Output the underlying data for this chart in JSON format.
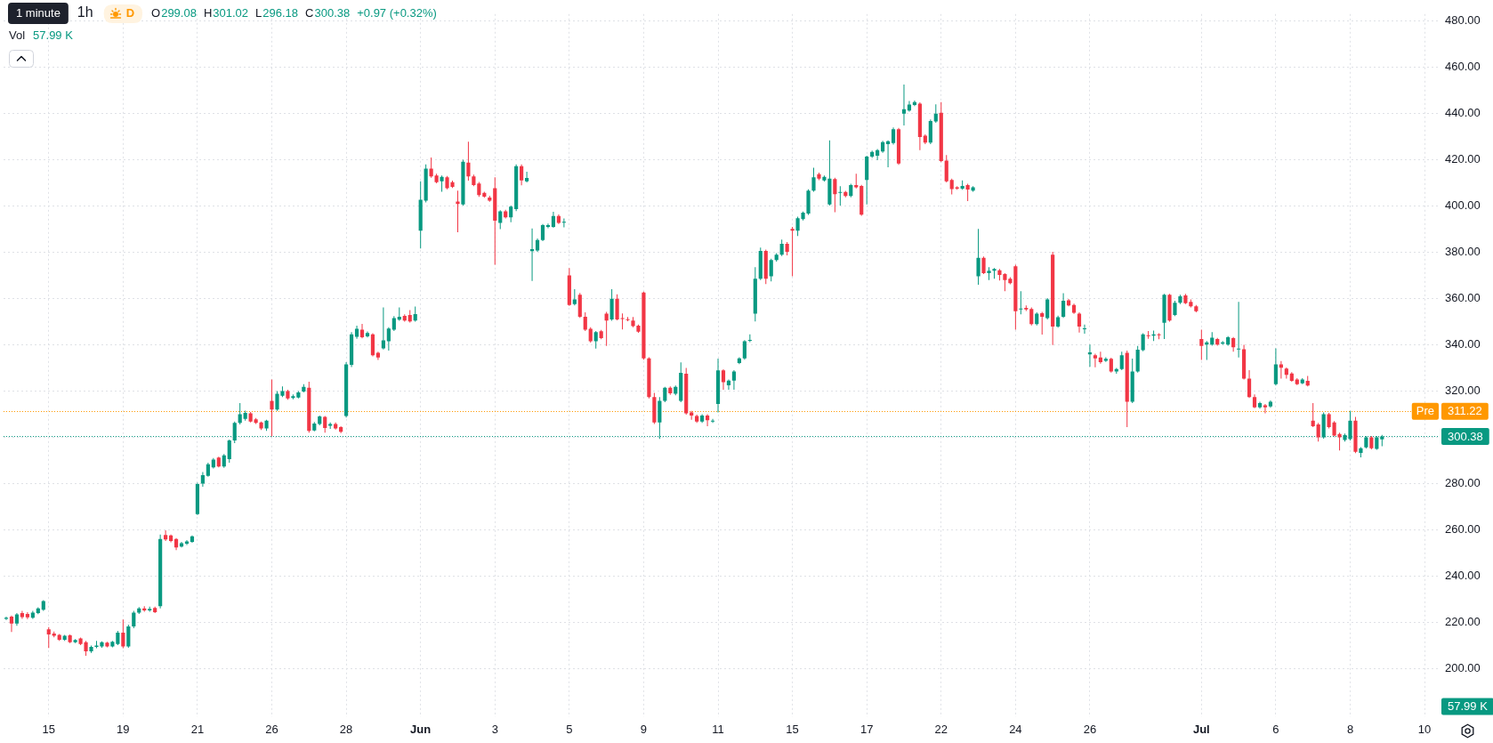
{
  "chart_data": {
    "type": "candlestick",
    "title": "1h",
    "subtitle": "D",
    "annotations": [
      "1 minute",
      "O299.08",
      "H301.02",
      "L296.18",
      "C300.38",
      "+0.97 (+0.32%)",
      "Vol",
      "57.99 K",
      "57.99 K"
    ],
    "categories": [
      null,
      null,
      null,
      null,
      null,
      null,
      null,
      null,
      "15",
      null,
      null,
      null,
      null,
      null,
      null,
      null,
      null,
      null,
      null,
      null,
      null,
      null,
      "19",
      null,
      null,
      null,
      null,
      null,
      null,
      null,
      null,
      null,
      null,
      null,
      null,
      null,
      "21",
      null,
      null,
      null,
      null,
      null,
      null,
      null,
      null,
      null,
      null,
      null,
      null,
      null,
      "26",
      null,
      null,
      null,
      null,
      null,
      null,
      null,
      null,
      null,
      null,
      null,
      null,
      null,
      "28",
      null,
      null,
      null,
      null,
      null,
      null,
      null,
      null,
      null,
      null,
      null,
      null,
      null,
      "Jun",
      null,
      null,
      null,
      null,
      null,
      null,
      null,
      null,
      null,
      null,
      null,
      null,
      null,
      "3",
      null,
      null,
      null,
      null,
      null,
      null,
      null,
      null,
      null,
      null,
      null,
      null,
      null,
      "5",
      null,
      null,
      null,
      null,
      null,
      null,
      null,
      null,
      null,
      null,
      null,
      null,
      null,
      "9",
      null,
      null,
      null,
      null,
      null,
      null,
      null,
      null,
      null,
      null,
      null,
      null,
      null,
      "11",
      null,
      null,
      null,
      null,
      null,
      null,
      null,
      null,
      null,
      null,
      null,
      null,
      null,
      "15",
      null,
      null,
      null,
      null,
      null,
      null,
      null,
      null,
      null,
      null,
      null,
      null,
      null,
      "17",
      null,
      null,
      null,
      null,
      null,
      null,
      null,
      null,
      null,
      null,
      null,
      null,
      null,
      "22",
      null,
      null,
      null,
      null,
      null,
      null,
      null,
      null,
      null,
      null,
      null,
      null,
      null,
      "24",
      null,
      null,
      null,
      null,
      null,
      null,
      null,
      null,
      null,
      null,
      null,
      null,
      null,
      "26",
      null,
      null,
      null,
      null,
      null,
      null,
      null,
      null,
      null,
      null,
      null,
      null,
      null,
      null,
      null,
      null,
      null,
      null,
      null,
      null,
      "Jul",
      null,
      null,
      null,
      null,
      null,
      null,
      null,
      null,
      null,
      null,
      null,
      null,
      null,
      "6",
      null,
      null,
      null,
      null,
      null,
      null,
      null,
      null,
      null,
      null,
      null,
      null,
      null,
      "8",
      null,
      null,
      null,
      null,
      null,
      null,
      null,
      null,
      null,
      null,
      null,
      null,
      null,
      "10",
      null,
      null
    ],
    "ohlc": [
      [
        221.5,
        222.5,
        221,
        222
      ],
      [
        222.5,
        223,
        215.8,
        219.5
      ],
      [
        219.5,
        224,
        218.5,
        223.4
      ],
      [
        224,
        225,
        221.5,
        222.3
      ],
      [
        223.6,
        224.4,
        221.4,
        222.2
      ],
      [
        222,
        225,
        221.5,
        224.2
      ],
      [
        224,
        226.5,
        223.5,
        226
      ],
      [
        225.5,
        229.6,
        225,
        229.2
      ],
      [
        217,
        218,
        208.9,
        214.8
      ],
      [
        215.2,
        216,
        213.5,
        214.2
      ],
      [
        214.6,
        215,
        212,
        212.5
      ],
      [
        212.5,
        214.6,
        212,
        214.2
      ],
      [
        214.4,
        214.8,
        211,
        211.4
      ],
      [
        211.4,
        212.8,
        211,
        212.4
      ],
      [
        213,
        213.4,
        210.2,
        210.6
      ],
      [
        211.4,
        212,
        205.5,
        207.5
      ],
      [
        207.5,
        210,
        206.8,
        209.4
      ],
      [
        209.4,
        212,
        208.8,
        210
      ],
      [
        209.6,
        211.8,
        209,
        211.4
      ],
      [
        211.2,
        211.6,
        209.2,
        209.6
      ],
      [
        209.6,
        212,
        209.2,
        211.6
      ],
      [
        210.6,
        216.3,
        210.2,
        215.5
      ],
      [
        215.5,
        221.2,
        208.8,
        209.6
      ],
      [
        209.6,
        219,
        209,
        218.2
      ],
      [
        218.2,
        225,
        217.5,
        224.2
      ],
      [
        224.2,
        226.6,
        223.6,
        226
      ],
      [
        226,
        227,
        224.6,
        225.2
      ],
      [
        225.2,
        226.8,
        224.6,
        225.8
      ],
      [
        226.2,
        226.8,
        224,
        224.4
      ],
      [
        227,
        258,
        226,
        256
      ],
      [
        257.8,
        259.8,
        255.2,
        255.8
      ],
      [
        257.6,
        258,
        254.6,
        255.2
      ],
      [
        256,
        256.4,
        251.2,
        252.4
      ],
      [
        252.8,
        254.8,
        252.4,
        254.2
      ],
      [
        254,
        255.6,
        253.4,
        255
      ],
      [
        254.8,
        257.6,
        254.4,
        257.2
      ],
      [
        266.8,
        280.4,
        266.4,
        279.8
      ],
      [
        280,
        285,
        278.6,
        283.6
      ],
      [
        283.4,
        289,
        283,
        288.4
      ],
      [
        287,
        291,
        286.5,
        290.4
      ],
      [
        291.2,
        291.6,
        287,
        287.4
      ],
      [
        287.4,
        292.8,
        286.8,
        292.2
      ],
      [
        290.6,
        299,
        289,
        298.6
      ],
      [
        298.6,
        306.8,
        297.5,
        306.2
      ],
      [
        306.2,
        314.8,
        305.6,
        310
      ],
      [
        308,
        311.5,
        307.2,
        310.6
      ],
      [
        310.4,
        311,
        306.4,
        306.8
      ],
      [
        307.8,
        308.4,
        305.8,
        306.2
      ],
      [
        306.4,
        306.8,
        303.2,
        303.8
      ],
      [
        303.8,
        307.6,
        302.8,
        307.2
      ],
      [
        315.8,
        325,
        300.4,
        312
      ],
      [
        312,
        320,
        311.4,
        318.8
      ],
      [
        318,
        322,
        317.4,
        320
      ],
      [
        320,
        320.6,
        316.2,
        316.8
      ],
      [
        317,
        318.6,
        316.4,
        317.8
      ],
      [
        317.2,
        320,
        316.8,
        319.4
      ],
      [
        319.8,
        323,
        319.4,
        321.8
      ],
      [
        321.4,
        324,
        302,
        302.8
      ],
      [
        303,
        306.6,
        302.6,
        306
      ],
      [
        305.8,
        309.4,
        305.2,
        309
      ],
      [
        308.8,
        309.2,
        302,
        304
      ],
      [
        305,
        306.4,
        303.6,
        305.8
      ],
      [
        305.8,
        306.4,
        303.4,
        303.8
      ],
      [
        304.4,
        304.8,
        301.8,
        302.4
      ],
      [
        309.2,
        332.5,
        308.6,
        331.5
      ],
      [
        331.3,
        345.5,
        330.4,
        344.5
      ],
      [
        343.5,
        348.3,
        342.6,
        346.9
      ],
      [
        346.5,
        349,
        342.8,
        343.3
      ],
      [
        343.7,
        345.8,
        343.2,
        345.1
      ],
      [
        344.5,
        345,
        335,
        335.5
      ],
      [
        336.5,
        337,
        333.5,
        334.5
      ],
      [
        338.5,
        356.2,
        338,
        341.9
      ],
      [
        341.5,
        347.6,
        337.5,
        347
      ],
      [
        346.5,
        352.4,
        346,
        351.5
      ],
      [
        350.9,
        356.2,
        350.4,
        352.1
      ],
      [
        352.5,
        353.2,
        350,
        350.5
      ],
      [
        352.9,
        355,
        349.6,
        350.1
      ],
      [
        350.5,
        356.5,
        350,
        353.3
      ],
      [
        389.3,
        410.7,
        381.6,
        402.7
      ],
      [
        402.3,
        418,
        401.6,
        416.2
      ],
      [
        416.2,
        421,
        412.2,
        412.8
      ],
      [
        413.2,
        414,
        409.8,
        410.3
      ],
      [
        410.7,
        413.2,
        406.2,
        412.6
      ],
      [
        412.4,
        413,
        407.2,
        407.7
      ],
      [
        410.3,
        411,
        407.8,
        408.3
      ],
      [
        401.9,
        406.7,
        388.7,
        400.9
      ],
      [
        400.7,
        420,
        400.2,
        419.2
      ],
      [
        418.8,
        427.8,
        411,
        412.8
      ],
      [
        412.8,
        413.6,
        408.6,
        409.1
      ],
      [
        409.7,
        410.4,
        404,
        404.7
      ],
      [
        405.7,
        406.2,
        403.6,
        404.1
      ],
      [
        403.7,
        404.4,
        401.8,
        402.3
      ],
      [
        407.7,
        412.4,
        374.6,
        393.7
      ],
      [
        392.7,
        398.2,
        390,
        397.7
      ],
      [
        397.7,
        398.4,
        394.6,
        395.1
      ],
      [
        395.1,
        400.2,
        393,
        399.7
      ],
      [
        398.7,
        418,
        397.8,
        417.2
      ],
      [
        417.2,
        418,
        409,
        411.1
      ],
      [
        410.7,
        414.8,
        410.2,
        412.1
      ],
      [
        380.5,
        390.3,
        367.6,
        381.4
      ],
      [
        380.8,
        386,
        380.2,
        385.3
      ],
      [
        385.3,
        392.2,
        384.8,
        391.7
      ],
      [
        391,
        392.4,
        390.4,
        391.7
      ],
      [
        391,
        397.5,
        390.6,
        395.7
      ],
      [
        395.7,
        396.4,
        392.2,
        392.7
      ],
      [
        392.8,
        394.6,
        390.8,
        393.2
      ],
      [
        370,
        373.2,
        356.8,
        357.2
      ],
      [
        357.6,
        364,
        357,
        359.6
      ],
      [
        361.6,
        362.4,
        351.6,
        352.1
      ],
      [
        352.1,
        354,
        346,
        346.5
      ],
      [
        346.9,
        347.6,
        341,
        341.5
      ],
      [
        341.5,
        346,
        338.4,
        345.5
      ],
      [
        345.9,
        346.4,
        342.4,
        342.9
      ],
      [
        353.5,
        354.2,
        339.5,
        350.5
      ],
      [
        351,
        364,
        350.4,
        359.9
      ],
      [
        359.9,
        361.8,
        350.6,
        351
      ],
      [
        351.5,
        353.6,
        346.6,
        351.3
      ],
      [
        351.1,
        352,
        350.2,
        350.7
      ],
      [
        350.5,
        352,
        347.6,
        348.1
      ],
      [
        348.3,
        348.8,
        345.2,
        345.7
      ],
      [
        362.6,
        363,
        333.6,
        334.1
      ],
      [
        334.1,
        334.6,
        316.8,
        317.4
      ],
      [
        317.4,
        319.2,
        305.8,
        306.4
      ],
      [
        306.4,
        317.4,
        299.3,
        315.8
      ],
      [
        315.8,
        321.8,
        315.2,
        321.4
      ],
      [
        321.4,
        322,
        318.4,
        319
      ],
      [
        318.8,
        322.4,
        318.2,
        321.8
      ],
      [
        315.8,
        332.4,
        315.2,
        327.9
      ],
      [
        327.5,
        330,
        309.8,
        310.4
      ],
      [
        310.8,
        311.4,
        307.6,
        309.4
      ],
      [
        309.2,
        309.8,
        306.2,
        306.8
      ],
      [
        306.8,
        310,
        306.2,
        309.4
      ],
      [
        309.4,
        310,
        304.8,
        307.4
      ],
      [
        306.8,
        308,
        306.2,
        307.2
      ],
      [
        314.4,
        334,
        310.8,
        328.9
      ],
      [
        328.9,
        329.4,
        320.6,
        323.8
      ],
      [
        322.5,
        325,
        320.6,
        324.5
      ],
      [
        324.5,
        329,
        320.6,
        328.5
      ],
      [
        332.1,
        334.6,
        331.6,
        334.1
      ],
      [
        334.1,
        342,
        333.6,
        341.5
      ],
      [
        341.7,
        344.5,
        341.2,
        342.1
      ],
      [
        353.5,
        373.6,
        350.1,
        368.6
      ],
      [
        368.6,
        382,
        368,
        380.6
      ],
      [
        380.6,
        381.2,
        366.3,
        368.6
      ],
      [
        369.6,
        377.2,
        367.4,
        376.6
      ],
      [
        376.6,
        379.6,
        376,
        379
      ],
      [
        379,
        385.5,
        378.4,
        383.7
      ],
      [
        383.7,
        384.4,
        378.7,
        380.2
      ],
      [
        390.1,
        391,
        369.6,
        389.3
      ],
      [
        389.3,
        395.4,
        387,
        394.7
      ],
      [
        394.3,
        397.6,
        393.8,
        397.1
      ],
      [
        396.7,
        407.2,
        396.2,
        406.7
      ],
      [
        406.7,
        416.6,
        406.2,
        412.4
      ],
      [
        413.8,
        414.4,
        411.2,
        411.8
      ],
      [
        411.1,
        413.2,
        410.6,
        412.6
      ],
      [
        400.7,
        428.4,
        400.2,
        411.8
      ],
      [
        411.7,
        412.2,
        397.3,
        405.1
      ],
      [
        405.7,
        408.6,
        400.2,
        406.1
      ],
      [
        406.1,
        406.6,
        403.8,
        404.3
      ],
      [
        404.3,
        409.6,
        403.8,
        409.1
      ],
      [
        409.1,
        414,
        407.6,
        408.1
      ],
      [
        408.7,
        409.2,
        395.8,
        396.3
      ],
      [
        411.3,
        421.8,
        400.7,
        421.4
      ],
      [
        421.4,
        424,
        420.8,
        423.4
      ],
      [
        421.8,
        424.6,
        419.8,
        424.2
      ],
      [
        423.6,
        428.2,
        423,
        427.6
      ],
      [
        426.8,
        428.4,
        416.8,
        428
      ],
      [
        427.2,
        434,
        426.6,
        433.2
      ],
      [
        433.2,
        433.8,
        417.8,
        418.4
      ],
      [
        439.9,
        452.5,
        434.8,
        441.9
      ],
      [
        441.3,
        445.4,
        440.8,
        443.9
      ],
      [
        443.7,
        445.6,
        443.2,
        444.9
      ],
      [
        444.3,
        444.8,
        424.2,
        429.8
      ],
      [
        430.4,
        431,
        426.8,
        427.4
      ],
      [
        427.4,
        437.4,
        426.8,
        436.8
      ],
      [
        436.6,
        444,
        436,
        439.9
      ],
      [
        440.3,
        444.9,
        419,
        419.4
      ],
      [
        419.6,
        422,
        410.2,
        410.7
      ],
      [
        411.3,
        411.8,
        405,
        407.3
      ],
      [
        408.1,
        408.6,
        407,
        407.5
      ],
      [
        407.5,
        411.1,
        407,
        408.7
      ],
      [
        409.1,
        409.6,
        402.1,
        407.1
      ],
      [
        406.7,
        408.6,
        406.2,
        408.1
      ],
      [
        369.6,
        390.1,
        366,
        377.6
      ],
      [
        377.6,
        378.2,
        370.6,
        371
      ],
      [
        371,
        373.6,
        368,
        372
      ],
      [
        372,
        373.2,
        368.6,
        372.8
      ],
      [
        372.2,
        372.8,
        367.8,
        370.2
      ],
      [
        370.6,
        371,
        363.2,
        368
      ],
      [
        368.6,
        369.2,
        366.2,
        366.6
      ],
      [
        374,
        374.6,
        346.5,
        354.5
      ],
      [
        355.3,
        363.2,
        353.2,
        355.7
      ],
      [
        356,
        357,
        354.6,
        355.3
      ],
      [
        355.5,
        356.2,
        348.4,
        348.9
      ],
      [
        348.9,
        354,
        348.4,
        353.5
      ],
      [
        353.7,
        354.2,
        344.4,
        352.1
      ],
      [
        351.5,
        360.2,
        351,
        359.6
      ],
      [
        379,
        380.2,
        339.9,
        347.9
      ],
      [
        347.9,
        352.6,
        347.4,
        351.9
      ],
      [
        352.1,
        362.3,
        351.6,
        359
      ],
      [
        359.2,
        359.8,
        356.6,
        357
      ],
      [
        357.2,
        357.8,
        353.4,
        353.9
      ],
      [
        353.5,
        354,
        345.3,
        347.9
      ],
      [
        346.7,
        348.8,
        344.8,
        347.1
      ],
      [
        335.9,
        340.1,
        330.5,
        336.7
      ],
      [
        335.5,
        336.2,
        330.3,
        334.1
      ],
      [
        334.5,
        337,
        331.8,
        332.5
      ],
      [
        333.1,
        334.6,
        332.6,
        333.9
      ],
      [
        333.9,
        334.4,
        328,
        328.5
      ],
      [
        328.5,
        330,
        327.5,
        329.5
      ],
      [
        329.5,
        337,
        329,
        335.5
      ],
      [
        336.5,
        337.5,
        304.4,
        315.4
      ],
      [
        315.4,
        334,
        314.8,
        328.5
      ],
      [
        328.5,
        339.5,
        328,
        337.9
      ],
      [
        337.7,
        345,
        337.2,
        344.5
      ],
      [
        344.1,
        346,
        342.6,
        343.9
      ],
      [
        343.9,
        346.2,
        341.6,
        344.5
      ],
      [
        344.5,
        345,
        342.4,
        344.3
      ],
      [
        349.5,
        362,
        342.5,
        361.6
      ],
      [
        361.6,
        362,
        350,
        350.5
      ],
      [
        352.9,
        359,
        352.4,
        358.2
      ],
      [
        358.2,
        361.6,
        357.6,
        361
      ],
      [
        361.4,
        362,
        357.6,
        358
      ],
      [
        358.6,
        359.6,
        356.2,
        356.6
      ],
      [
        356.6,
        357.2,
        354,
        354.5
      ],
      [
        342.5,
        346.5,
        333.5,
        339.5
      ],
      [
        340.1,
        341.6,
        333.5,
        341.1
      ],
      [
        340.1,
        345.5,
        339.6,
        343.1
      ],
      [
        342.5,
        343,
        339.6,
        340.1
      ],
      [
        340.5,
        341.6,
        340,
        341.1
      ],
      [
        340.1,
        343.8,
        339.6,
        343.3
      ],
      [
        342.9,
        343.4,
        337,
        338.9
      ],
      [
        338,
        358.6,
        334.5,
        338.4
      ],
      [
        338.1,
        340,
        325,
        325.4
      ],
      [
        325.4,
        329,
        317,
        317.4
      ],
      [
        317.4,
        318.6,
        312.6,
        313
      ],
      [
        313,
        315.4,
        312.4,
        314.8
      ],
      [
        313.8,
        314.4,
        310.4,
        313
      ],
      [
        313.4,
        316,
        312.8,
        315.4
      ],
      [
        323,
        338.5,
        322.4,
        331.5
      ],
      [
        331.5,
        333,
        325.4,
        330.1
      ],
      [
        329.7,
        330.2,
        325.4,
        327
      ],
      [
        327.6,
        328.2,
        324,
        324.4
      ],
      [
        325,
        325.6,
        322.6,
        323
      ],
      [
        323.4,
        325.6,
        323,
        325
      ],
      [
        324.4,
        326.5,
        322,
        322.4
      ],
      [
        307.2,
        314.8,
        304.4,
        304.8
      ],
      [
        305.6,
        306.2,
        298.2,
        300
      ],
      [
        300,
        310.8,
        299.4,
        310
      ],
      [
        310,
        310.6,
        303.8,
        304.4
      ],
      [
        306.4,
        307,
        300.4,
        300.8
      ],
      [
        301.4,
        302,
        294.3,
        300
      ],
      [
        298.8,
        301.6,
        298.2,
        301
      ],
      [
        299.2,
        311.4,
        298.6,
        307.2
      ],
      [
        307.2,
        308.8,
        293.2,
        293.7
      ],
      [
        293.3,
        295.8,
        291.3,
        295.3
      ],
      [
        295.7,
        300.6,
        295.2,
        300
      ],
      [
        300,
        300.6,
        294.8,
        295.3
      ],
      [
        295,
        300.6,
        294.6,
        300
      ],
      [
        299.08,
        301.02,
        296.18,
        300.38
      ],
      null,
      null,
      null,
      null,
      null,
      null,
      null,
      null,
      null,
      null
    ],
    "colors": [
      "#089981",
      "#f23645",
      "#089981",
      "#f23645",
      "#f23645",
      "#089981",
      "#089981",
      "#089981",
      "#f23645",
      "#f23645",
      "#f23645",
      "#089981",
      "#f23645",
      "#089981",
      "#f23645",
      "#f23645",
      "#089981",
      "#089981",
      "#089981",
      "#f23645",
      "#089981",
      "#089981",
      "#f23645",
      "#089981",
      "#089981",
      "#089981",
      "#f23645",
      "#089981",
      "#f23645",
      "#089981",
      "#f23645",
      "#f23645",
      "#f23645",
      "#089981",
      "#089981",
      "#089981",
      "#089981",
      "#089981",
      "#089981",
      "#089981",
      "#f23645",
      "#089981",
      "#089981",
      "#089981",
      "#089981",
      "#089981",
      "#f23645",
      "#f23645",
      "#f23645",
      "#089981",
      "#f23645",
      "#089981",
      "#089981",
      "#f23645",
      "#089981",
      "#089981",
      "#089981",
      "#f23645",
      "#089981",
      "#089981",
      "#f23645",
      "#089981",
      "#f23645",
      "#f23645",
      "#089981",
      "#089981",
      "#089981",
      "#f23645",
      "#089981",
      "#f23645",
      "#f23645",
      "#089981",
      "#089981",
      "#089981",
      "#089981",
      "#f23645",
      "#f23645",
      "#089981",
      "#089981",
      "#089981",
      "#f23645",
      "#f23645",
      "#089981",
      "#f23645",
      "#f23645",
      "#f23645",
      "#089981",
      "#f23645",
      "#f23645",
      "#f23645",
      "#f23645",
      "#f23645",
      "#f23645",
      "#089981",
      "#f23645",
      "#089981",
      "#089981",
      "#f23645",
      "#089981",
      "#089981",
      "#089981",
      "#089981",
      "#089981",
      "#089981",
      "#f23645",
      "#089981",
      "#f23645",
      "#089981",
      "#f23645",
      "#f23645",
      "#f23645",
      "#089981",
      "#f23645",
      "#f23645",
      "#089981",
      "#f23645",
      "#f23645",
      "#f23645",
      "#f23645",
      "#f23645",
      "#f23645",
      "#f23645",
      "#f23645",
      "#089981",
      "#089981",
      "#f23645",
      "#089981",
      "#089981",
      "#f23645",
      "#f23645",
      "#f23645",
      "#089981",
      "#f23645",
      "#089981",
      "#089981",
      "#f23645",
      "#089981",
      "#089981",
      "#089981",
      "#089981",
      "#089981",
      "#089981",
      "#089981",
      "#f23645",
      "#089981",
      "#089981",
      "#089981",
      "#f23645",
      "#f23645",
      "#089981",
      "#089981",
      "#089981",
      "#089981",
      "#f23645",
      "#089981",
      "#089981",
      "#f23645",
      "#089981",
      "#f23645",
      "#089981",
      "#f23645",
      "#f23645",
      "#089981",
      "#089981",
      "#089981",
      "#089981",
      "#089981",
      "#089981",
      "#f23645",
      "#089981",
      "#089981",
      "#089981",
      "#f23645",
      "#f23645",
      "#089981",
      "#089981",
      "#f23645",
      "#f23645",
      "#f23645",
      "#f23645",
      "#089981",
      "#f23645",
      "#089981",
      "#089981",
      "#f23645",
      "#089981",
      "#089981",
      "#f23645",
      "#f23645",
      "#f23645",
      "#f23645",
      "#089981",
      "#f23645",
      "#f23645",
      "#089981",
      "#f23645",
      "#089981",
      "#f23645",
      "#089981",
      "#089981",
      "#f23645",
      "#f23645",
      "#f23645",
      "#089981",
      "#089981",
      "#f23645",
      "#f23645",
      "#089981",
      "#f23645",
      "#089981",
      "#089981",
      "#f23645",
      "#089981",
      "#089981",
      "#089981",
      "#f23645",
      "#089981",
      "#f23645",
      "#089981",
      "#f23645",
      "#089981",
      "#089981",
      "#f23645",
      "#f23645",
      "#f23645",
      "#f23645",
      "#089981",
      "#089981",
      "#f23645",
      "#089981",
      "#089981",
      "#f23645",
      "#089981",
      "#f23645",
      "#f23645",
      "#f23645",
      "#089981",
      "#f23645",
      "#089981",
      "#089981",
      "#f23645",
      "#f23645",
      "#f23645",
      "#f23645",
      "#089981",
      "#f23645",
      "#f23645",
      "#f23645",
      "#089981",
      "#f23645",
      "#f23645",
      "#f23645",
      "#089981",
      "#089981",
      "#f23645",
      "#089981",
      "#089981",
      "#f23645",
      "#089981",
      "#089981",
      null,
      null,
      null,
      null,
      null,
      null,
      null,
      null,
      null,
      null
    ],
    "ylim": [
      179,
      483
    ],
    "yticks": [
      {
        "value": 200,
        "label": "200.00"
      },
      {
        "value": 220,
        "label": "220.00"
      },
      {
        "value": 240,
        "label": "240.00"
      },
      {
        "value": 260,
        "label": "260.00"
      },
      {
        "value": 280,
        "label": "280.00"
      },
      {
        "value": 300,
        "label": null
      },
      {
        "value": 320,
        "label": "320.00"
      },
      {
        "value": 340,
        "label": "340.00"
      },
      {
        "value": 360,
        "label": "360.00"
      },
      {
        "value": 380,
        "label": "380.00"
      },
      {
        "value": 400,
        "label": "400.00"
      },
      {
        "value": 420,
        "label": "420.00"
      },
      {
        "value": 440,
        "label": "440.00"
      },
      {
        "value": 460,
        "label": "460.00"
      },
      {
        "value": 480,
        "label": "480.00"
      }
    ],
    "ref_lines": [
      {
        "axis": "y",
        "value": 311.22,
        "label": "Pre 311.22",
        "color": "#ff9800",
        "line_style": "dotted"
      },
      {
        "axis": "y",
        "value": 300.38,
        "label": "300.38",
        "color": "#089981",
        "line_style": "dotted"
      }
    ],
    "grid": true
  }
}
